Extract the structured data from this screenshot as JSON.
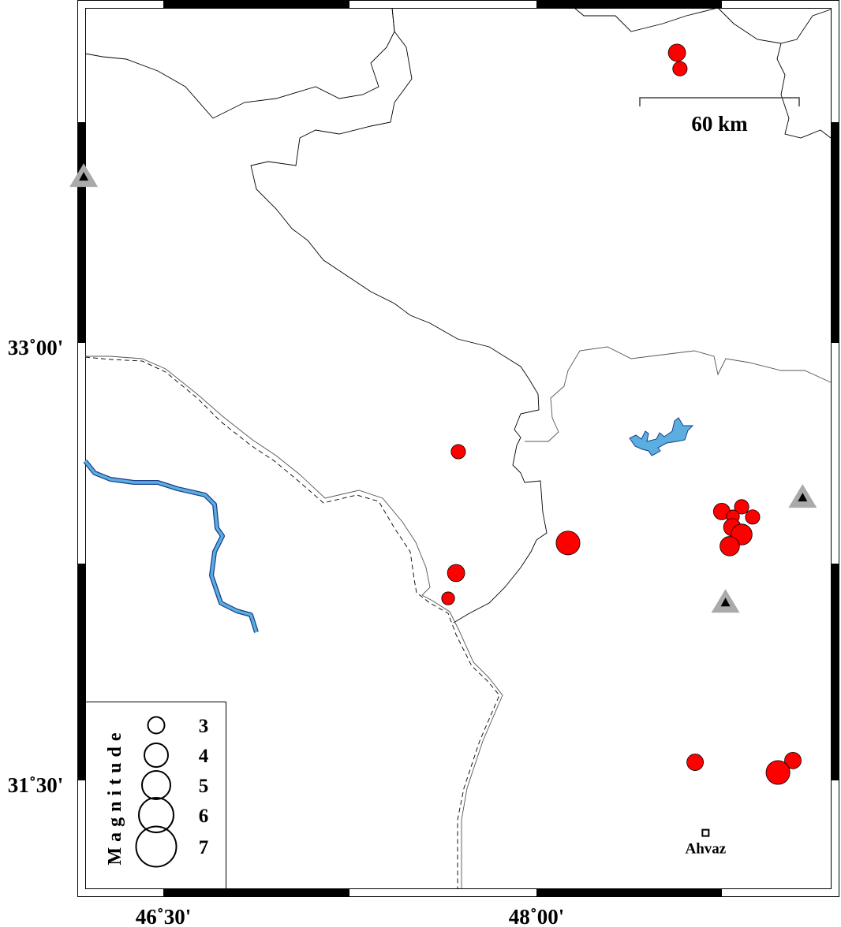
{
  "map": {
    "frame": {
      "lon_labels": [
        "46˚30'",
        "48˚00'"
      ],
      "lat_labels": [
        "33˚00'",
        "31˚30'"
      ]
    },
    "scale_bar": {
      "label": "60 km"
    },
    "colors": {
      "event": "#ff0000",
      "water": "#5aafe0",
      "water_outline": "#1a3c8c",
      "station_outer": "#aaaaaa",
      "station_inner": "#000000"
    },
    "events": [
      {
        "lon": 48.565,
        "lat": 33.995,
        "mag": 3.1
      },
      {
        "lon": 48.577,
        "lat": 33.94,
        "mag": 2.7
      },
      {
        "lon": 47.686,
        "lat": 32.627,
        "mag": 2.7
      },
      {
        "lon": 47.677,
        "lat": 32.211,
        "mag": 3.1
      },
      {
        "lon": 47.645,
        "lat": 32.124,
        "mag": 2.5
      },
      {
        "lon": 48.127,
        "lat": 32.314,
        "mag": 4.0
      },
      {
        "lon": 48.745,
        "lat": 32.422,
        "mag": 3.0
      },
      {
        "lon": 48.825,
        "lat": 32.438,
        "mag": 2.7
      },
      {
        "lon": 48.869,
        "lat": 32.403,
        "mag": 2.7
      },
      {
        "lon": 48.79,
        "lat": 32.405,
        "mag": 2.5
      },
      {
        "lon": 48.787,
        "lat": 32.368,
        "mag": 3.1
      },
      {
        "lon": 48.825,
        "lat": 32.343,
        "mag": 3.6
      },
      {
        "lon": 48.777,
        "lat": 32.303,
        "mag": 3.4
      },
      {
        "lon": 48.638,
        "lat": 31.562,
        "mag": 3.0
      },
      {
        "lon": 49.031,
        "lat": 31.568,
        "mag": 3.0
      },
      {
        "lon": 48.971,
        "lat": 31.527,
        "mag": 4.0
      }
    ],
    "stations": [
      {
        "lon": 46.18,
        "lat": 33.57
      },
      {
        "lon": 49.07,
        "lat": 32.47
      },
      {
        "lon": 48.76,
        "lat": 32.11
      }
    ],
    "city": {
      "name": "Ahvaz",
      "lon": 48.68,
      "lat": 31.32
    },
    "legend": {
      "title": "Magnitude",
      "magnitudes": [
        "3",
        "4",
        "5",
        "6",
        "7"
      ]
    }
  }
}
